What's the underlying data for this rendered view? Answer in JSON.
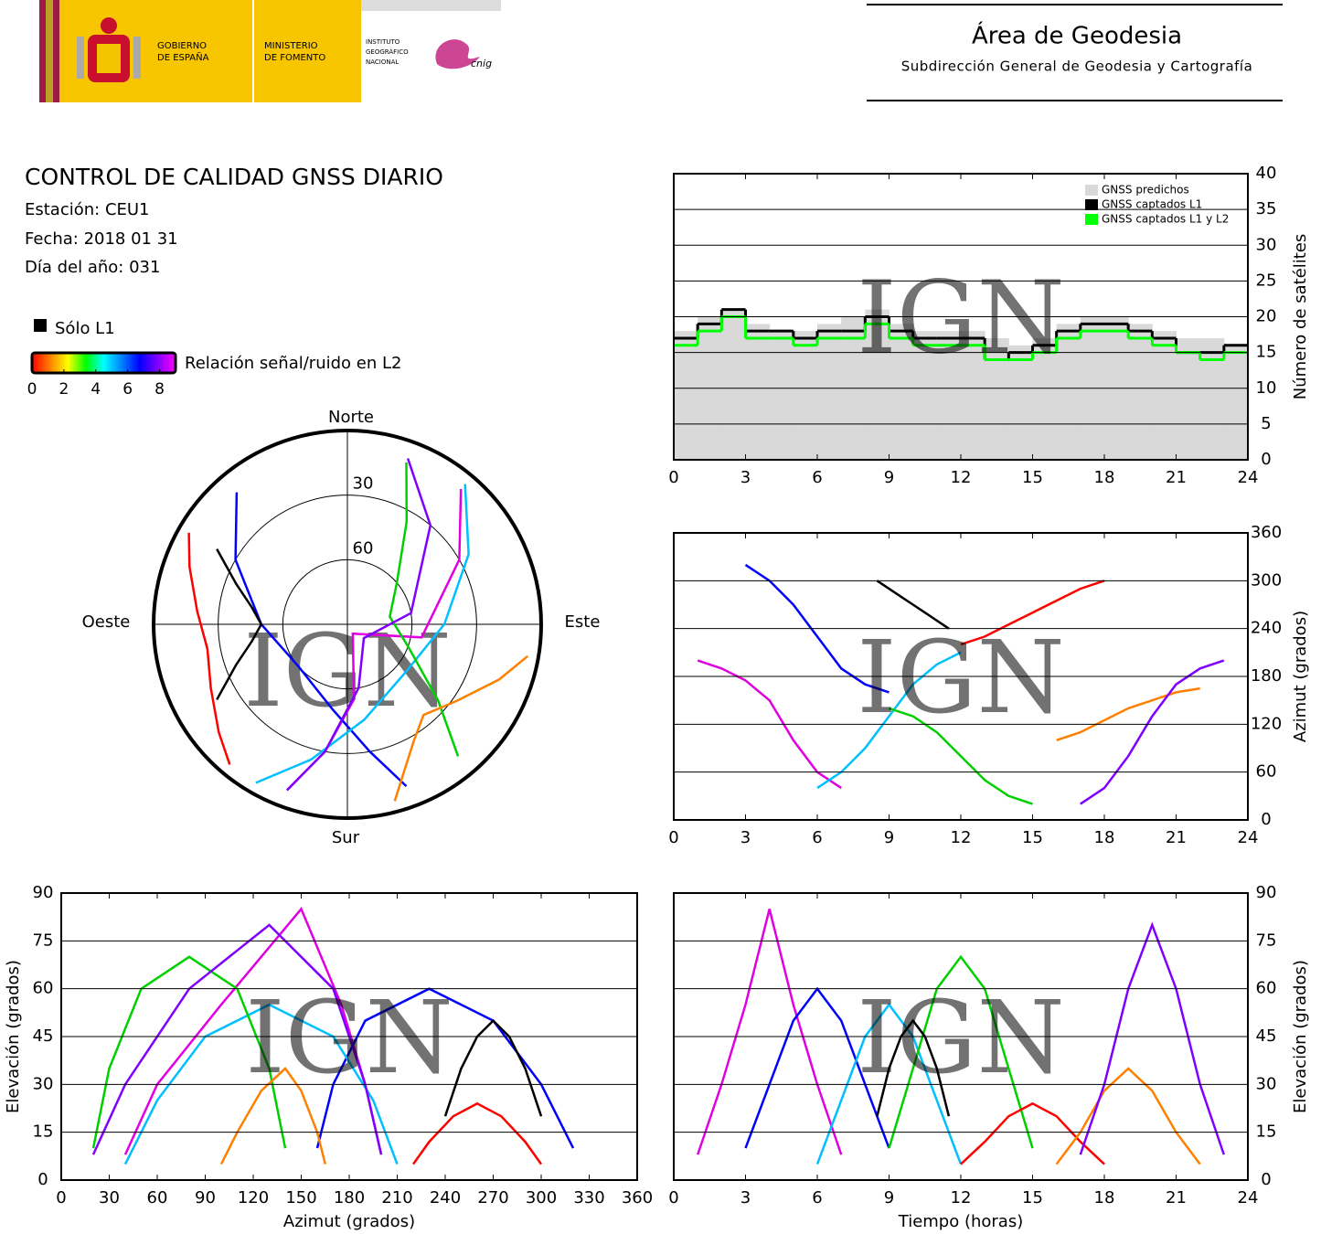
{
  "header": {
    "government": [
      "GOBIERNO",
      "DE ESPAÑA"
    ],
    "ministry": [
      "MINISTERIO",
      "DE FOMENTO"
    ],
    "institute": [
      "INSTITUTO",
      "GEOGRÁFICO",
      "NACIONAL"
    ],
    "cnig": "cnig",
    "area": "Área de Geodesia",
    "subdirectorate": "Subdirección General de Geodesia y Cartografía"
  },
  "report": {
    "title": "CONTROL DE CALIDAD GNSS DIARIO",
    "station": "Estación: CEU1",
    "date": "Fecha: 2018 01 31",
    "day_of_year": "Día del año: 031"
  },
  "legend": {
    "l1_only": "Sólo L1",
    "l1_only_color": "#000000",
    "colorbar": {
      "label": "Relación señal/ruido en L2",
      "lim": [
        0,
        9
      ],
      "ticks": [
        0,
        2,
        4,
        6,
        8
      ],
      "colors": [
        "#ff0000",
        "#ff8000",
        "#ffff00",
        "#00ff00",
        "#00ffff",
        "#0080ff",
        "#0000ff",
        "#8000ff",
        "#ff00ff"
      ]
    }
  },
  "chart_data": [
    {
      "type": "step",
      "ylabel": "Número de satélites",
      "watermark": "IGN",
      "xlim": [
        0,
        24
      ],
      "xticks": [
        0,
        3,
        6,
        9,
        12,
        15,
        18,
        21,
        24
      ],
      "ylim": [
        0,
        40
      ],
      "yticks": [
        0,
        5,
        10,
        15,
        20,
        25,
        30,
        35,
        40
      ],
      "grid": true,
      "legend": "upper right",
      "x": [
        0,
        1,
        2,
        3,
        4,
        5,
        6,
        7,
        8,
        9,
        10,
        11,
        12,
        13,
        14,
        15,
        16,
        17,
        18,
        19,
        20,
        21,
        22,
        23
      ],
      "series": [
        {
          "name": "GNSS predichos",
          "color": "#d9d9d9",
          "fill": true,
          "values": [
            18,
            20,
            21,
            19,
            18,
            18,
            19,
            20,
            21,
            19,
            18,
            18,
            18,
            17,
            16,
            17,
            19,
            20,
            20,
            19,
            18,
            17,
            17,
            16
          ]
        },
        {
          "name": "GNSS captados L1",
          "color": "#000000",
          "values": [
            17,
            19,
            21,
            18,
            18,
            17,
            18,
            18,
            20,
            18,
            17,
            17,
            17,
            14,
            15,
            16,
            18,
            19,
            19,
            18,
            17,
            15,
            15,
            16
          ]
        },
        {
          "name": "GNSS captados L1 y L2",
          "color": "#00ff00",
          "values": [
            16,
            18,
            20,
            17,
            17,
            16,
            17,
            17,
            19,
            17,
            16,
            16,
            16,
            14,
            14,
            15,
            17,
            18,
            18,
            17,
            16,
            15,
            14,
            15
          ]
        }
      ]
    },
    {
      "type": "line",
      "ylabel": "Azimut (grados)",
      "watermark": "IGN",
      "xlim": [
        0,
        24
      ],
      "xticks": [
        0,
        3,
        6,
        9,
        12,
        15,
        18,
        21,
        24
      ],
      "ylim": [
        0,
        360
      ],
      "yticks": [
        0,
        60,
        120,
        180,
        240,
        300,
        360
      ],
      "grid": true,
      "series": [
        {
          "color": "#e000e0",
          "x": [
            1,
            2,
            3,
            4,
            5,
            6,
            7
          ],
          "values": [
            200,
            190,
            175,
            150,
            100,
            60,
            40
          ]
        },
        {
          "color": "#0000ff",
          "x": [
            3,
            4,
            5,
            6,
            7,
            8,
            9
          ],
          "values": [
            320,
            300,
            270,
            230,
            190,
            170,
            160
          ]
        },
        {
          "color": "#00c0ff",
          "x": [
            6,
            7,
            8,
            9,
            10,
            11,
            12
          ],
          "values": [
            40,
            60,
            90,
            130,
            170,
            195,
            210
          ]
        },
        {
          "color": "#00d000",
          "x": [
            9,
            10,
            11,
            12,
            13,
            14,
            15
          ],
          "values": [
            140,
            130,
            110,
            80,
            50,
            30,
            20
          ]
        },
        {
          "color": "#ff0000",
          "x": [
            12,
            13,
            14,
            15,
            16,
            17,
            18
          ],
          "values": [
            220,
            230,
            245,
            260,
            275,
            290,
            300
          ]
        },
        {
          "color": "#000000",
          "x": [
            8.5,
            9,
            9.5,
            10,
            10.5,
            11,
            11.5
          ],
          "values": [
            300,
            290,
            280,
            270,
            260,
            250,
            240
          ]
        },
        {
          "color": "#ff8000",
          "x": [
            16,
            17,
            18,
            19,
            20,
            21,
            22
          ],
          "values": [
            100,
            110,
            125,
            140,
            150,
            160,
            165
          ]
        },
        {
          "color": "#8000ff",
          "x": [
            17,
            18,
            19,
            20,
            21,
            22,
            23
          ],
          "values": [
            20,
            40,
            80,
            130,
            170,
            190,
            200
          ]
        }
      ]
    },
    {
      "type": "polar",
      "north": "Norte",
      "south": "Sur",
      "east": "Este",
      "west": "Oeste",
      "watermark": "IGN",
      "rlim": [
        0,
        90
      ],
      "rticks": [
        30,
        60
      ],
      "series": [
        {
          "color": "#e000e0",
          "x": [
            200,
            190,
            175,
            150,
            100,
            60,
            40
          ],
          "values": [
            8,
            30,
            55,
            85,
            55,
            30,
            8
          ]
        },
        {
          "color": "#0000ff",
          "x": [
            320,
            300,
            270,
            230,
            190,
            170,
            160
          ],
          "values": [
            10,
            30,
            50,
            60,
            50,
            30,
            10
          ]
        },
        {
          "color": "#00c0ff",
          "x": [
            40,
            60,
            90,
            130,
            170,
            195,
            210
          ],
          "values": [
            5,
            25,
            45,
            55,
            45,
            25,
            5
          ]
        },
        {
          "color": "#00d000",
          "x": [
            140,
            130,
            110,
            80,
            50,
            30,
            20
          ],
          "values": [
            10,
            35,
            60,
            70,
            60,
            35,
            10
          ]
        },
        {
          "color": "#ff0000",
          "x": [
            220,
            230,
            245,
            260,
            275,
            290,
            300
          ],
          "values": [
            5,
            12,
            20,
            24,
            20,
            12,
            5
          ]
        },
        {
          "color": "#000000",
          "x": [
            300,
            290,
            280,
            270,
            260,
            250,
            240
          ],
          "values": [
            20,
            35,
            45,
            50,
            45,
            35,
            20
          ]
        },
        {
          "color": "#ff8000",
          "x": [
            100,
            110,
            125,
            140,
            150,
            160,
            165
          ],
          "values": [
            5,
            15,
            28,
            35,
            28,
            15,
            5
          ]
        },
        {
          "color": "#8000ff",
          "x": [
            20,
            40,
            80,
            130,
            170,
            190,
            200
          ],
          "values": [
            8,
            30,
            60,
            80,
            60,
            30,
            8
          ]
        }
      ]
    },
    {
      "type": "line",
      "xlabel": "Azimut (grados)",
      "ylabel": "Elevación (grados)",
      "watermark": "IGN",
      "xlim": [
        0,
        360
      ],
      "xticks": [
        0,
        30,
        60,
        90,
        120,
        150,
        180,
        210,
        240,
        270,
        300,
        330,
        360
      ],
      "ylim": [
        0,
        90
      ],
      "yticks": [
        0,
        15,
        30,
        45,
        60,
        75,
        90
      ],
      "grid": true,
      "series": [
        {
          "color": "#e000e0",
          "x": [
            200,
            190,
            175,
            150,
            100,
            60,
            40
          ],
          "values": [
            8,
            30,
            55,
            85,
            55,
            30,
            8
          ]
        },
        {
          "color": "#0000ff",
          "x": [
            320,
            300,
            270,
            230,
            190,
            170,
            160
          ],
          "values": [
            10,
            30,
            50,
            60,
            50,
            30,
            10
          ]
        },
        {
          "color": "#00c0ff",
          "x": [
            40,
            60,
            90,
            130,
            170,
            195,
            210
          ],
          "values": [
            5,
            25,
            45,
            55,
            45,
            25,
            5
          ]
        },
        {
          "color": "#00d000",
          "x": [
            140,
            130,
            110,
            80,
            50,
            30,
            20
          ],
          "values": [
            10,
            35,
            60,
            70,
            60,
            35,
            10
          ]
        },
        {
          "color": "#ff0000",
          "x": [
            220,
            230,
            245,
            260,
            275,
            290,
            300
          ],
          "values": [
            5,
            12,
            20,
            24,
            20,
            12,
            5
          ]
        },
        {
          "color": "#000000",
          "x": [
            300,
            290,
            280,
            270,
            260,
            250,
            240
          ],
          "values": [
            20,
            35,
            45,
            50,
            45,
            35,
            20
          ]
        },
        {
          "color": "#ff8000",
          "x": [
            100,
            110,
            125,
            140,
            150,
            160,
            165
          ],
          "values": [
            5,
            15,
            28,
            35,
            28,
            15,
            5
          ]
        },
        {
          "color": "#8000ff",
          "x": [
            20,
            40,
            80,
            130,
            170,
            190,
            200
          ],
          "values": [
            8,
            30,
            60,
            80,
            60,
            30,
            8
          ]
        }
      ]
    },
    {
      "type": "line",
      "xlabel": "Tiempo (horas)",
      "ylabel": "Elevación (grados)",
      "watermark": "IGN",
      "xlim": [
        0,
        24
      ],
      "xticks": [
        0,
        3,
        6,
        9,
        12,
        15,
        18,
        21,
        24
      ],
      "ylim": [
        0,
        90
      ],
      "yticks": [
        0,
        15,
        30,
        45,
        60,
        75,
        90
      ],
      "grid": true,
      "series": [
        {
          "color": "#e000e0",
          "x": [
            1,
            2,
            3,
            4,
            5,
            6,
            7
          ],
          "values": [
            8,
            30,
            55,
            85,
            55,
            30,
            8
          ]
        },
        {
          "color": "#0000ff",
          "x": [
            3,
            4,
            5,
            6,
            7,
            8,
            9
          ],
          "values": [
            10,
            30,
            50,
            60,
            50,
            30,
            10
          ]
        },
        {
          "color": "#00c0ff",
          "x": [
            6,
            7,
            8,
            9,
            10,
            11,
            12
          ],
          "values": [
            5,
            25,
            45,
            55,
            45,
            25,
            5
          ]
        },
        {
          "color": "#00d000",
          "x": [
            9,
            10,
            11,
            12,
            13,
            14,
            15
          ],
          "values": [
            10,
            35,
            60,
            70,
            60,
            35,
            10
          ]
        },
        {
          "color": "#ff0000",
          "x": [
            12,
            13,
            14,
            15,
            16,
            17,
            18
          ],
          "values": [
            5,
            12,
            20,
            24,
            20,
            12,
            5
          ]
        },
        {
          "color": "#000000",
          "x": [
            8.5,
            9,
            9.5,
            10,
            10.5,
            11,
            11.5
          ],
          "values": [
            20,
            35,
            45,
            50,
            45,
            35,
            20
          ]
        },
        {
          "color": "#ff8000",
          "x": [
            16,
            17,
            18,
            19,
            20,
            21,
            22
          ],
          "values": [
            5,
            15,
            28,
            35,
            28,
            15,
            5
          ]
        },
        {
          "color": "#8000ff",
          "x": [
            17,
            18,
            19,
            20,
            21,
            22,
            23
          ],
          "values": [
            8,
            30,
            60,
            80,
            60,
            30,
            8
          ]
        }
      ]
    }
  ]
}
